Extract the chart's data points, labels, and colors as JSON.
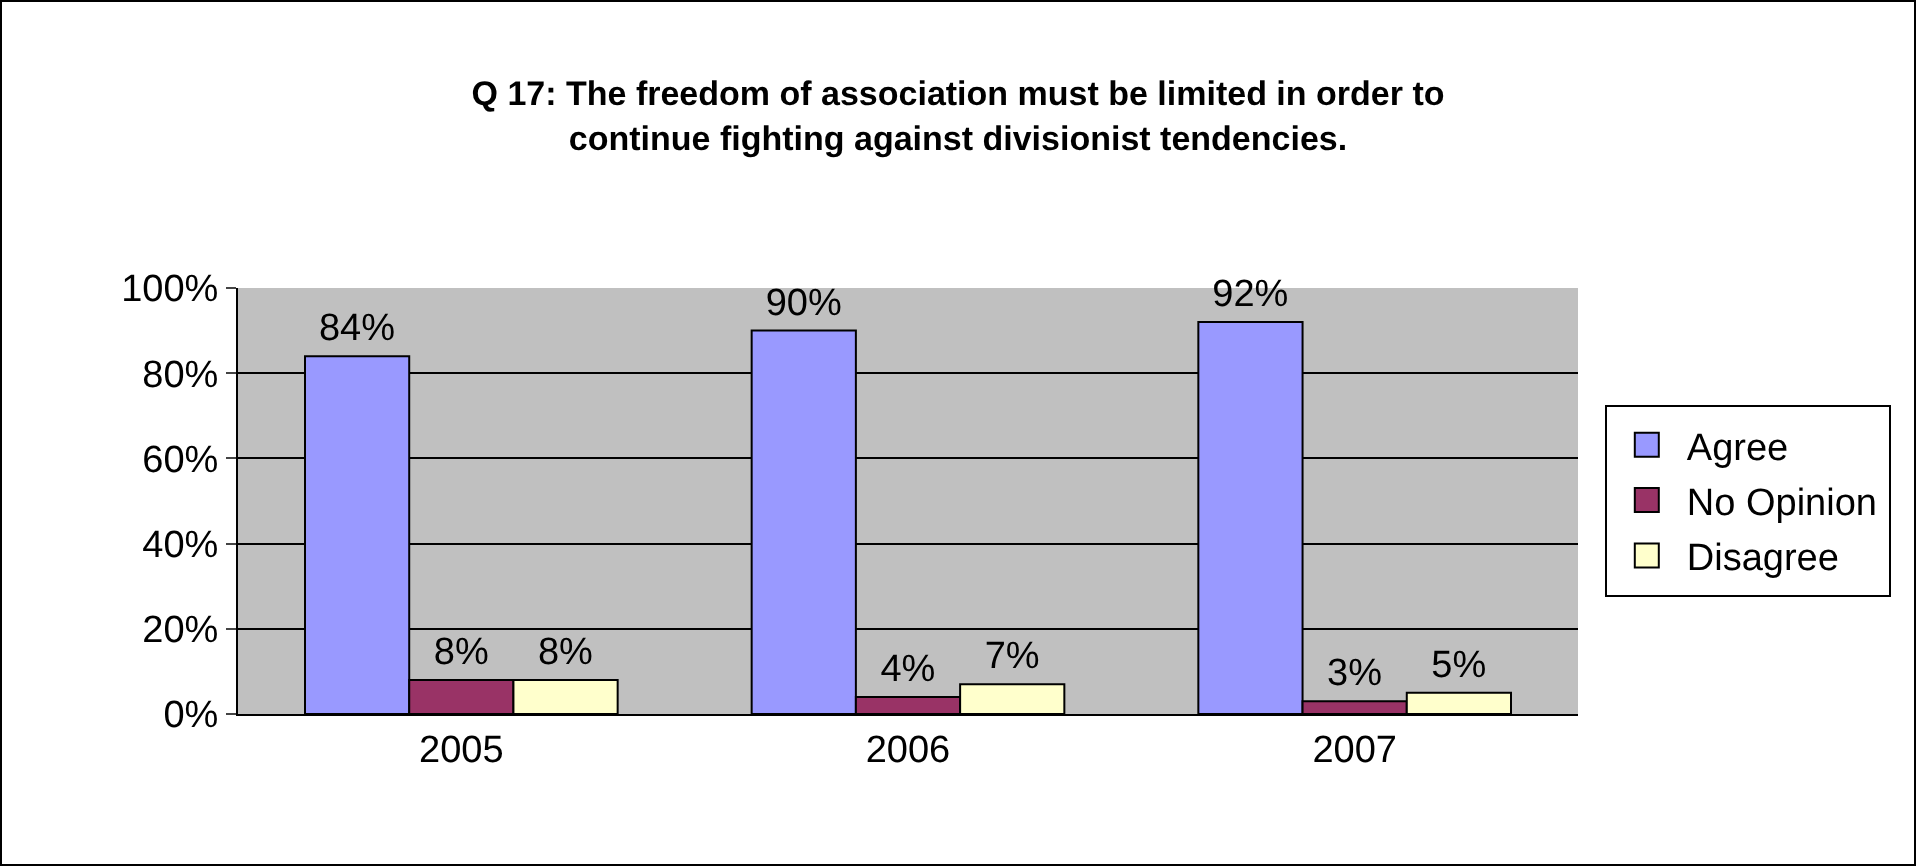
{
  "chart_data": {
    "type": "bar",
    "title": "Q 17: The freedom of association must be limited in order to\ncontinue fighting against divisionist tendencies.",
    "categories": [
      "2005",
      "2006",
      "2007"
    ],
    "series": [
      {
        "name": "Agree",
        "color": "#9999ff",
        "values": [
          84,
          90,
          92
        ],
        "value_labels": [
          "84%",
          "90%",
          "92%"
        ]
      },
      {
        "name": "No Opinion",
        "color": "#993366",
        "values": [
          8,
          4,
          3
        ],
        "value_labels": [
          "8%",
          "4%",
          "3%"
        ]
      },
      {
        "name": "Disagree",
        "color": "#ffffcc",
        "values": [
          8,
          7,
          5
        ],
        "value_labels": [
          "8%",
          "7%",
          "5%"
        ]
      }
    ],
    "ylim": [
      0,
      100
    ],
    "yticks": [
      {
        "value": 0,
        "label": "0%"
      },
      {
        "value": 20,
        "label": "20%"
      },
      {
        "value": 40,
        "label": "40%"
      },
      {
        "value": 60,
        "label": "60%"
      },
      {
        "value": 80,
        "label": "80%"
      },
      {
        "value": 100,
        "label": "100%"
      }
    ],
    "grid": "y",
    "legend": "right"
  }
}
